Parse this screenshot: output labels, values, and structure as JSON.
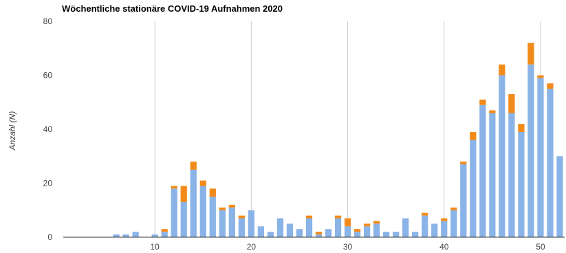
{
  "chart_data": {
    "type": "bar",
    "stacked": true,
    "title": "Wöchentliche stationäre COVID-19 Aufnahmen 2020",
    "xlabel": "",
    "ylabel": "Anzahl (N)",
    "ylim": [
      0,
      80
    ],
    "yticks": [
      0,
      20,
      40,
      60,
      80
    ],
    "xticks": [
      10,
      20,
      30,
      40,
      50
    ],
    "xlim": [
      0.5,
      52.5
    ],
    "grid": "vertical",
    "legend": "none",
    "colors": {
      "lower": "#8ab4e8",
      "upper": "#f28a1a"
    },
    "x": [
      1,
      2,
      3,
      4,
      5,
      6,
      7,
      8,
      9,
      10,
      11,
      12,
      13,
      14,
      15,
      16,
      17,
      18,
      19,
      20,
      21,
      22,
      23,
      24,
      25,
      26,
      27,
      28,
      29,
      30,
      31,
      32,
      33,
      34,
      35,
      36,
      37,
      38,
      39,
      40,
      41,
      42,
      43,
      44,
      45,
      46,
      47,
      48,
      49,
      50,
      51,
      52
    ],
    "series": [
      {
        "values": [
          0,
          0,
          0,
          0,
          0,
          1,
          1,
          2,
          0,
          1,
          2,
          18,
          13,
          25,
          19,
          15,
          10,
          11,
          7,
          10,
          4,
          2,
          7,
          5,
          3,
          7,
          1,
          3,
          7,
          4,
          2,
          4,
          5,
          2,
          2,
          7,
          2,
          8,
          5,
          6,
          10,
          27,
          36,
          49,
          46,
          60,
          46,
          39,
          64,
          59,
          55,
          30
        ]
      },
      {
        "values": [
          0,
          0,
          0,
          0,
          0,
          0,
          0,
          0,
          0,
          0,
          1,
          1,
          6,
          3,
          2,
          3,
          1,
          1,
          1,
          0,
          0,
          0,
          0,
          0,
          0,
          1,
          1,
          0,
          1,
          3,
          1,
          1,
          1,
          0,
          0,
          0,
          0,
          1,
          0,
          1,
          1,
          1,
          3,
          2,
          1,
          4,
          7,
          3,
          8,
          1,
          2,
          0
        ]
      }
    ]
  }
}
